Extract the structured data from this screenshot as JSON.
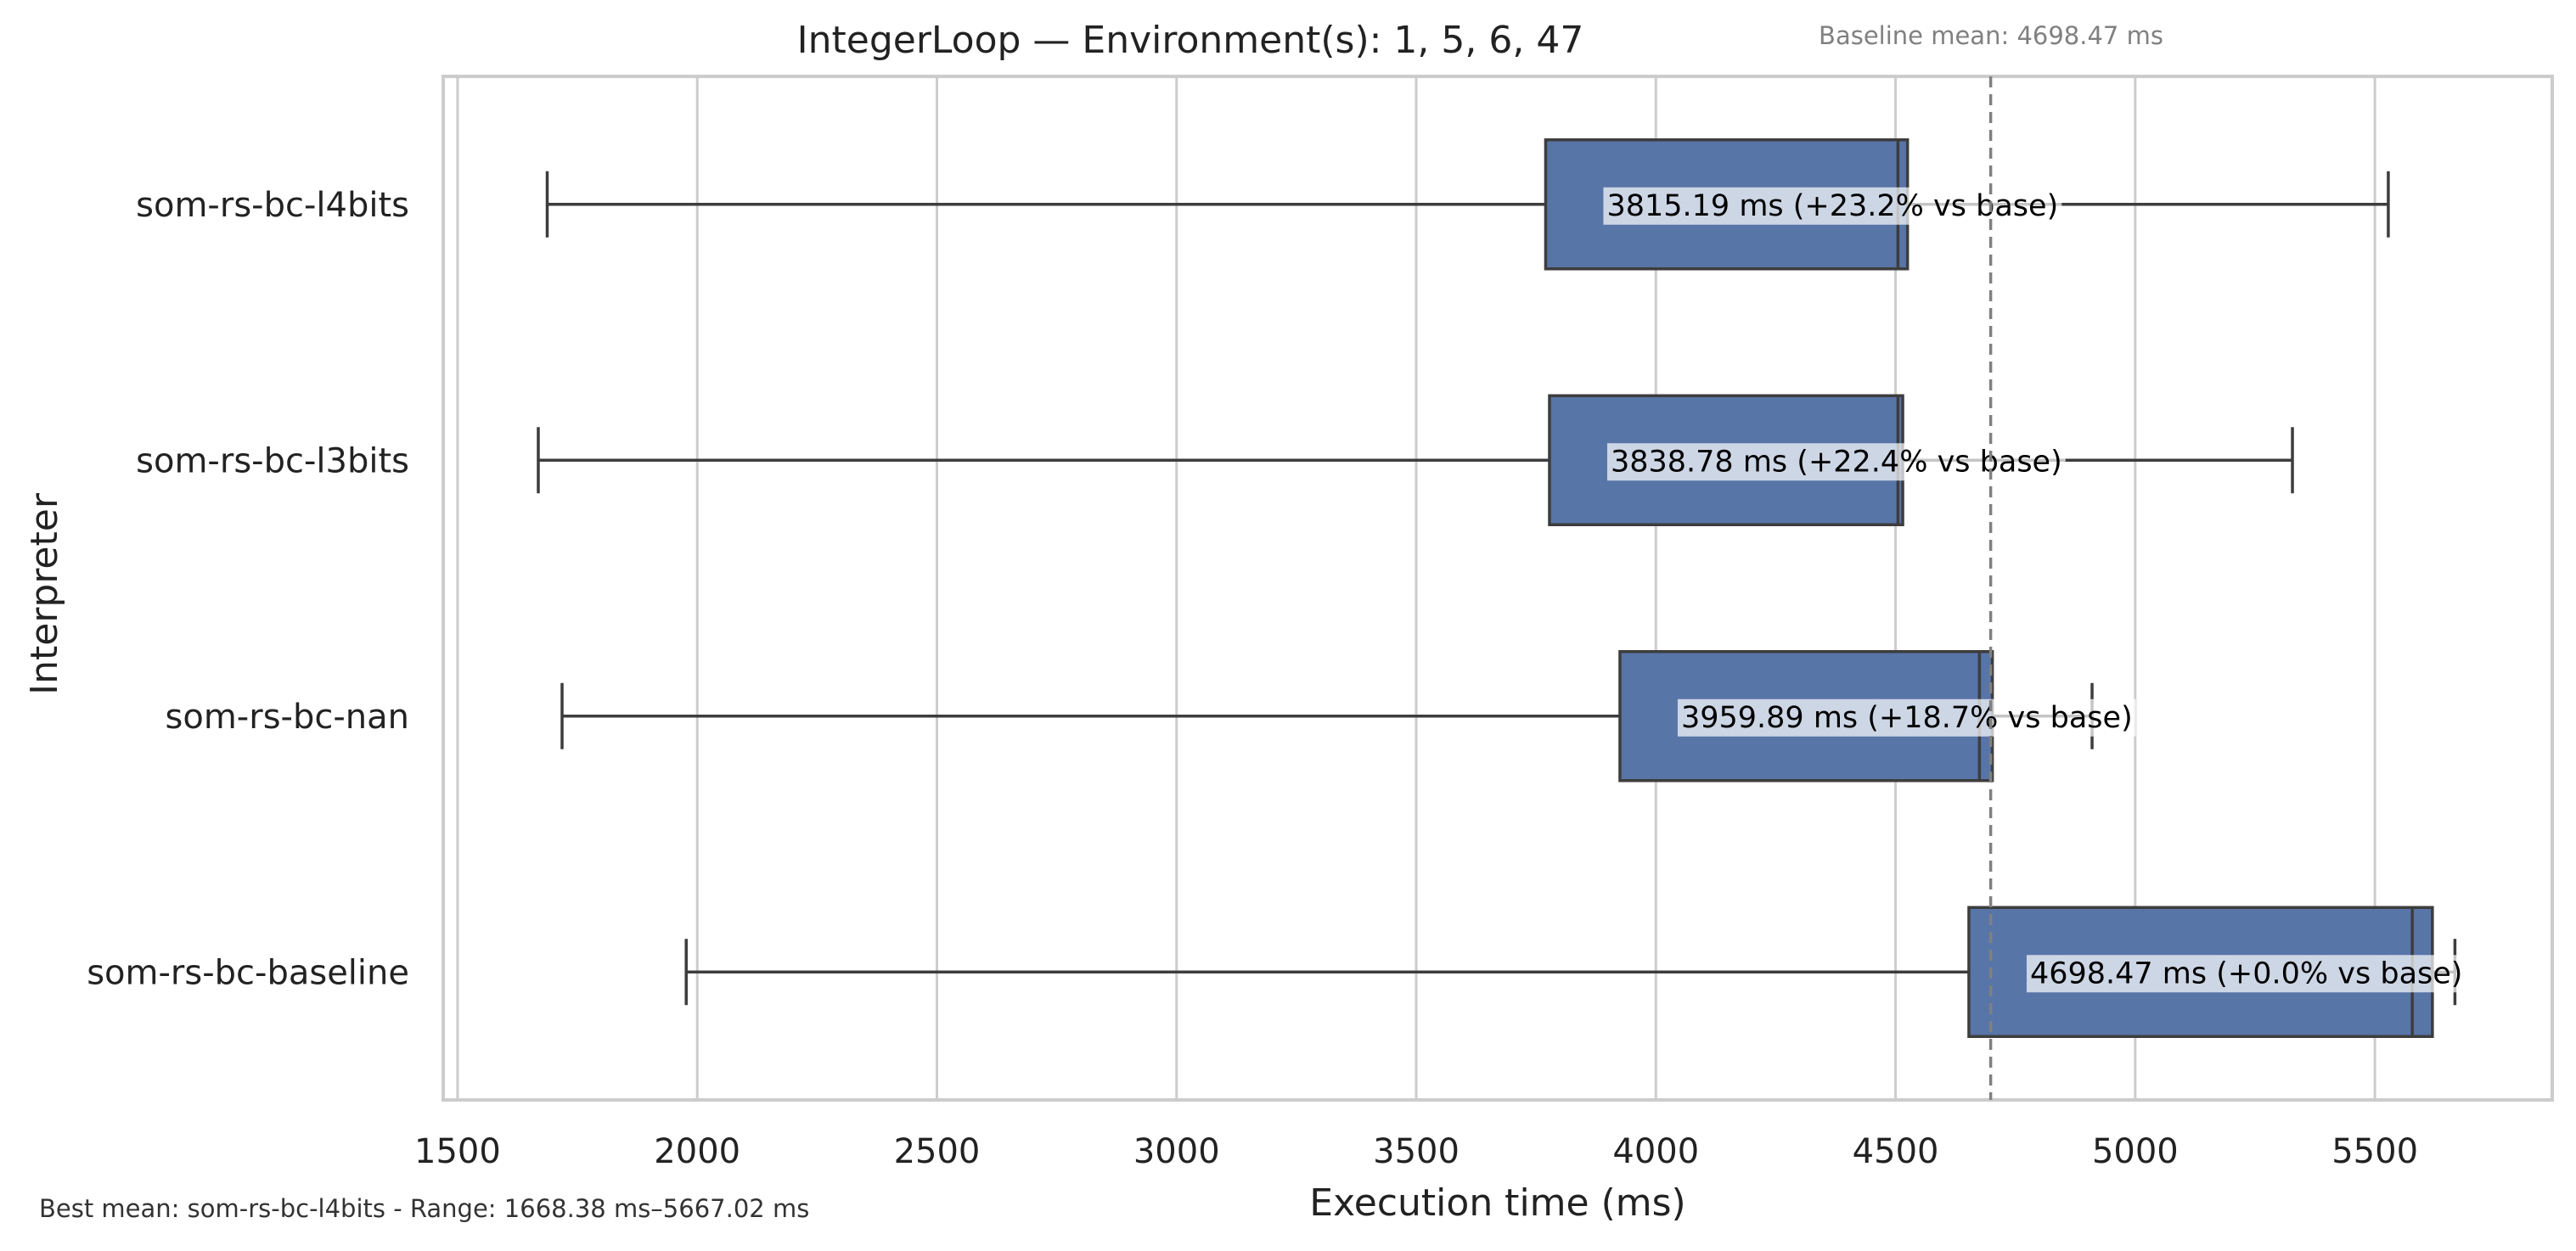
{
  "chart_data": {
    "type": "boxplot",
    "orientation": "horizontal",
    "title": "IntegerLoop — Environment(s): 1, 5, 6, 47",
    "xlabel": "Execution time (ms)",
    "ylabel": "Interpreter",
    "xlim": [
      1470,
      5870
    ],
    "xticks": [
      1500,
      2000,
      2500,
      3000,
      3500,
      4000,
      4500,
      5000,
      5500
    ],
    "grid": "vertical",
    "box_color": "#5875a8",
    "baseline": {
      "label": "Baseline mean: 4698.47 ms",
      "value": 4698.47
    },
    "footer": "Best mean: som-rs-bc-l4bits - Range: 1668.38 ms–5667.02 ms",
    "series": [
      {
        "name": "som-rs-bc-l4bits",
        "whisker_low": 1687,
        "q1": 3770,
        "median": 4505,
        "q3": 4525,
        "whisker_high": 5528,
        "mean_label": "3815.19 ms  (+23.2% vs base)"
      },
      {
        "name": "som-rs-bc-l3bits",
        "whisker_low": 1668.38,
        "q1": 3778,
        "median": 4505,
        "q3": 4515,
        "whisker_high": 5328,
        "mean_label": "3838.78 ms  (+22.4% vs base)"
      },
      {
        "name": "som-rs-bc-nan",
        "whisker_low": 1718,
        "q1": 3925,
        "median": 4675,
        "q3": 4702,
        "whisker_high": 4910,
        "mean_label": "3959.89 ms  (+18.7% vs base)"
      },
      {
        "name": "som-rs-bc-baseline",
        "whisker_low": 1977,
        "q1": 4653,
        "median": 5578,
        "q3": 5620,
        "whisker_high": 5667.02,
        "mean_label": "4698.47 ms  (+0.0% vs base)"
      }
    ]
  }
}
